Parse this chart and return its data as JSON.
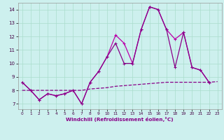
{
  "xlabel": "Windchill (Refroidissement éolien,°C)",
  "background_color": "#cdf0ee",
  "grid_color": "#aaddcc",
  "line_color": "#bb00aa",
  "line_color2": "#880088",
  "xlim": [
    -0.5,
    23.5
  ],
  "ylim": [
    6.6,
    14.5
  ],
  "yticks": [
    7,
    8,
    9,
    10,
    11,
    12,
    13,
    14
  ],
  "xticks": [
    0,
    1,
    2,
    3,
    4,
    5,
    6,
    7,
    8,
    9,
    10,
    11,
    12,
    13,
    14,
    15,
    16,
    17,
    18,
    19,
    20,
    21,
    22,
    23
  ],
  "line1_x": [
    0,
    1,
    2,
    3,
    4,
    5,
    6,
    7,
    8,
    9,
    10,
    11,
    12,
    13,
    14,
    15,
    16,
    17,
    18,
    19,
    20,
    21,
    22
  ],
  "line1_y": [
    8.6,
    8.0,
    7.3,
    7.75,
    7.6,
    7.75,
    8.0,
    7.0,
    8.6,
    9.4,
    10.5,
    12.1,
    11.5,
    10.0,
    12.5,
    14.2,
    14.0,
    12.5,
    11.8,
    12.3,
    9.7,
    9.5,
    8.6
  ],
  "line2_x": [
    0,
    1,
    2,
    3,
    4,
    5,
    6,
    7,
    8,
    9,
    10,
    11,
    12,
    13,
    14,
    15,
    16,
    17,
    18,
    19,
    20,
    21,
    22
  ],
  "line2_y": [
    8.6,
    8.0,
    7.3,
    7.75,
    7.6,
    7.75,
    8.0,
    7.0,
    8.6,
    9.4,
    10.5,
    11.5,
    10.0,
    10.0,
    12.5,
    14.2,
    14.0,
    12.5,
    9.7,
    12.3,
    9.7,
    9.5,
    8.6
  ],
  "line3_x": [
    0,
    1,
    2,
    3,
    4,
    5,
    6,
    7,
    8,
    9,
    10,
    11,
    12,
    13,
    14,
    15,
    16,
    17,
    18,
    19,
    20,
    21,
    22,
    23
  ],
  "line3_y": [
    8.0,
    8.0,
    8.0,
    8.0,
    8.0,
    8.0,
    8.0,
    8.0,
    8.1,
    8.15,
    8.2,
    8.3,
    8.35,
    8.4,
    8.45,
    8.5,
    8.55,
    8.6,
    8.6,
    8.6,
    8.6,
    8.6,
    8.6,
    8.65
  ]
}
